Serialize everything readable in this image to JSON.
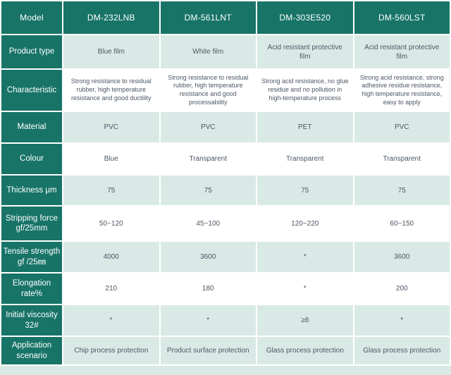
{
  "table": {
    "header": {
      "label": "Model",
      "columns": [
        "DM-232LNB",
        "DM-561LNT",
        "DM-303E520",
        "DM-560LST"
      ]
    },
    "rows": [
      {
        "label": "Product type",
        "shaded": true,
        "cells": [
          "Blue film",
          "White film",
          "Acid resistant protective film",
          "Acid resistant protective film"
        ]
      },
      {
        "label": "Characteristic",
        "shaded": false,
        "cells": [
          "Strong resistance to residual rubber, high temperature resistance and good ductility",
          "Strong resistance to residual rubber, high temperature resistance and good processability",
          "Strong acid resistance, no glue residue and no pollution in high-temperature process",
          "Strong acid resistance, strong adhesive residue resistance, high temperature resistance, easy to apply"
        ]
      },
      {
        "label": "Material",
        "shaded": true,
        "cells": [
          "PVC",
          "PVC",
          "PET",
          "PVC"
        ]
      },
      {
        "label": "Colour",
        "shaded": false,
        "cells": [
          "Blue",
          "Transparent",
          "Transparent",
          "Transparent"
        ]
      },
      {
        "label": "Thickness μm",
        "shaded": true,
        "cells": [
          "75",
          "75",
          "75",
          "75"
        ]
      },
      {
        "label": "Stripping force\ngf/25mm",
        "shaded": false,
        "cells": [
          "50~120",
          "45~100",
          "120~220",
          "60~150"
        ]
      },
      {
        "label": "Tensile strength\ngf /25㎜",
        "shaded": true,
        "cells": [
          "4000",
          "3600",
          "*",
          "3600"
        ]
      },
      {
        "label": "Elongation\nrate%",
        "shaded": false,
        "cells": [
          "210",
          "180",
          "*",
          "200"
        ]
      },
      {
        "label": "Initial viscosity\n32#",
        "shaded": true,
        "cells": [
          "*",
          "*",
          "≥8",
          "*"
        ]
      },
      {
        "label": "Application\nscenario",
        "shaded": true,
        "cells": [
          "Chip process protection",
          "Product surface protection",
          "Glass process protection",
          "Glass process protection"
        ]
      }
    ]
  },
  "colors": {
    "header_bg": "#177467",
    "shaded_cell_bg": "#d9eae6",
    "plain_cell_bg": "#ffffff",
    "header_text": "#ffffff",
    "cell_text": "#4c5764"
  }
}
